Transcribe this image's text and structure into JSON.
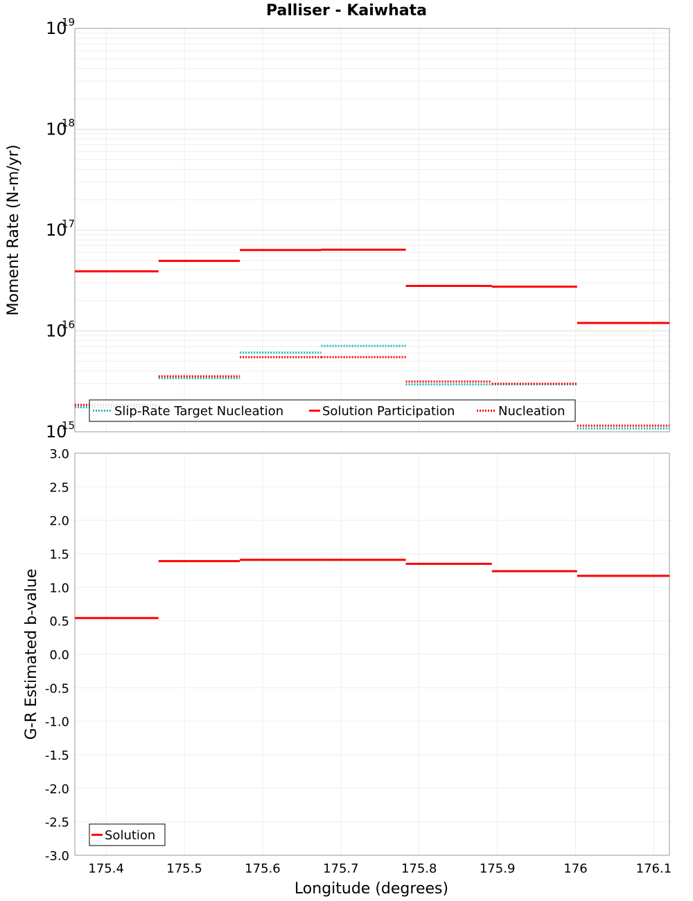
{
  "chart_data": [
    {
      "type": "line",
      "title": "Palliser - Kaiwhata",
      "xlabel": "",
      "ylabel": "Moment Rate (N-m/yr)",
      "yscale": "log",
      "ylim": [
        1000000000000000.0,
        1e+19
      ],
      "xlim": [
        175.36,
        176.12
      ],
      "y_ticks": [
        {
          "base": "10",
          "exp": "15",
          "value": 1000000000000000.0
        },
        {
          "base": "10",
          "exp": "16",
          "value": 1e+16
        },
        {
          "base": "10",
          "exp": "17",
          "value": 1e+17
        },
        {
          "base": "10",
          "exp": "18",
          "value": 1e+18
        },
        {
          "base": "10",
          "exp": "19",
          "value": 1e+19
        }
      ],
      "grid": true,
      "legend_placement": "bottom-left",
      "segment_edges": [
        175.36,
        175.467,
        175.571,
        175.675,
        175.783,
        175.893,
        176.002,
        176.12
      ],
      "series": [
        {
          "name": "Slip-Rate Target Nucleation",
          "color": "#1fb5b5",
          "style": "dotted",
          "values": [
            1750000000000000.0,
            3400000000000000.0,
            6100000000000000.0,
            7100000000000000.0,
            2950000000000000.0,
            2950000000000000.0,
            1080000000000000.0
          ]
        },
        {
          "name": "Solution Participation",
          "color": "#ff0000",
          "style": "solid",
          "values": [
            3.9e+16,
            4.95e+16,
            6.35e+16,
            6.4e+16,
            2.8e+16,
            2.75e+16,
            1.2e+16
          ]
        },
        {
          "name": "Nucleation",
          "color": "#ff0000",
          "style": "dotted",
          "values": [
            1850000000000000.0,
            3550000000000000.0,
            5500000000000000.0,
            5500000000000000.0,
            3150000000000000.0,
            3000000000000000.0,
            1150000000000000.0
          ]
        }
      ]
    },
    {
      "type": "line",
      "title": "",
      "xlabel": "Longitude (degrees)",
      "ylabel": "G-R Estimated b-value",
      "ylim": [
        -3.0,
        3.0
      ],
      "xlim": [
        175.36,
        176.12
      ],
      "x_ticks": [
        "175.4",
        "175.5",
        "175.6",
        "175.7",
        "175.8",
        "175.9",
        "176",
        "176.1"
      ],
      "x_tick_values": [
        175.4,
        175.5,
        175.6,
        175.7,
        175.8,
        175.9,
        176.0,
        176.1
      ],
      "y_ticks": [
        "-3.0",
        "-2.5",
        "-2.0",
        "-1.5",
        "-1.0",
        "-0.5",
        "0.0",
        "0.5",
        "1.0",
        "1.5",
        "2.0",
        "2.5",
        "3.0"
      ],
      "grid": true,
      "legend_placement": "bottom-left",
      "segment_edges": [
        175.36,
        175.467,
        175.571,
        175.675,
        175.783,
        175.893,
        176.002,
        176.12
      ],
      "series": [
        {
          "name": "Solution",
          "color": "#ff0000",
          "style": "solid",
          "values": [
            0.54,
            1.39,
            1.41,
            1.41,
            1.35,
            1.24,
            1.17
          ]
        }
      ]
    }
  ]
}
